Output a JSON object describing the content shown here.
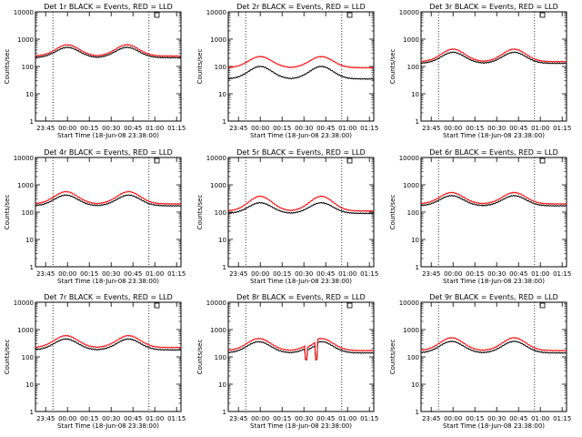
{
  "chart_data": {
    "type": "line",
    "common": {
      "xlabel": "Start Time (18-Jun-08 23:38:00)",
      "ylabel": "Counts/sec",
      "x_ticks": [
        "23:45",
        "00:00",
        "00:15",
        "00:30",
        "00:45",
        "01:00",
        "01:15"
      ],
      "x_range_minutes_from_start": [
        0,
        100
      ],
      "x_tick_minutes_from_start": [
        7,
        22,
        37,
        52,
        67,
        82,
        97
      ],
      "y_scale": "log",
      "y_range": [
        1,
        10000
      ],
      "y_ticks": [
        "1",
        "10",
        "100",
        "1000",
        "10000"
      ],
      "vertical_dotted_lines_minutes_from_start": [
        12,
        78
      ],
      "series_colors": {
        "Events": "#000000",
        "LLD": "#ff0000"
      },
      "series_names": [
        "Events",
        "LLD"
      ],
      "background": "#ffffff",
      "frame_color": "#000000"
    },
    "panels": [
      {
        "title": "Det 1r BLACK = Events, RED = LLD",
        "peaks": [
          22,
          63
        ],
        "events": {
          "base": 210,
          "peak": 500
        },
        "lld": {
          "base": 240,
          "peak": 620
        }
      },
      {
        "title": "Det 2r BLACK = Events, RED = LLD",
        "peaks": [
          22,
          64
        ],
        "events": {
          "base": 35,
          "peak": 100
        },
        "lld": {
          "base": 90,
          "peak": 230
        }
      },
      {
        "title": "Det 3r BLACK = Events, RED = LLD",
        "peaks": [
          22,
          64
        ],
        "events": {
          "base": 130,
          "peak": 330
        },
        "lld": {
          "base": 150,
          "peak": 430
        }
      },
      {
        "title": "Det 4r BLACK = Events, RED = LLD",
        "peaks": [
          21,
          64
        ],
        "events": {
          "base": 170,
          "peak": 420
        },
        "lld": {
          "base": 200,
          "peak": 560
        }
      },
      {
        "title": "Det 5r BLACK = Events, RED = LLD",
        "peaks": [
          22,
          64
        ],
        "events": {
          "base": 90,
          "peak": 220
        },
        "lld": {
          "base": 110,
          "peak": 380
        }
      },
      {
        "title": "Det 6r BLACK = Events, RED = LLD",
        "peaks": [
          21,
          64
        ],
        "events": {
          "base": 170,
          "peak": 400
        },
        "lld": {
          "base": 200,
          "peak": 520
        }
      },
      {
        "title": "Det 7r BLACK = Events, RED = LLD",
        "peaks": [
          21,
          64
        ],
        "events": {
          "base": 180,
          "peak": 450
        },
        "lld": {
          "base": 220,
          "peak": 600
        }
      },
      {
        "title": "Det 8r BLACK = Events, RED = LLD",
        "peaks": [
          21,
          64
        ],
        "events": {
          "base": 140,
          "peak": 360
        },
        "lld": {
          "base": 170,
          "peak": 470
        },
        "dip_minutes": [
          53,
          61
        ],
        "dip_value": 80
      },
      {
        "title": "Det 9r BLACK = Events, RED = LLD",
        "peaks": [
          21,
          64
        ],
        "events": {
          "base": 140,
          "peak": 370
        },
        "lld": {
          "base": 170,
          "peak": 500
        }
      }
    ]
  }
}
